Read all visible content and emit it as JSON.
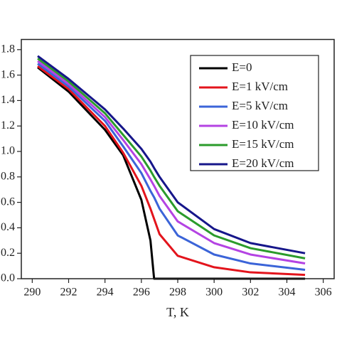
{
  "chart_data": {
    "type": "line",
    "x_label": "T, K",
    "x": [
      290.3,
      292,
      294,
      295,
      296,
      296.5,
      296.7,
      297,
      298,
      300,
      302,
      305
    ],
    "series": [
      {
        "name": "E=0",
        "color": "#000000",
        "values": [
          1.66,
          1.47,
          1.17,
          0.97,
          0.62,
          0.3,
          0,
          0,
          0,
          0,
          0,
          0
        ]
      },
      {
        "name": "E=1 kV/cm",
        "color": "#e3141c",
        "values": [
          1.67,
          1.49,
          1.2,
          0.99,
          0.73,
          0.55,
          0.47,
          0.35,
          0.18,
          0.09,
          0.05,
          0.03
        ]
      },
      {
        "name": "E=5 kV/cm",
        "color": "#3b64d8",
        "values": [
          1.69,
          1.51,
          1.24,
          1.04,
          0.83,
          0.69,
          0.64,
          0.55,
          0.34,
          0.19,
          0.12,
          0.07
        ]
      },
      {
        "name": "E=10 kV/cm",
        "color": "#b443e3",
        "values": [
          1.71,
          1.53,
          1.27,
          1.09,
          0.9,
          0.78,
          0.73,
          0.65,
          0.45,
          0.28,
          0.19,
          0.12
        ]
      },
      {
        "name": "E=15 kV/cm",
        "color": "#2b9b2b",
        "values": [
          1.73,
          1.55,
          1.3,
          1.13,
          0.96,
          0.85,
          0.8,
          0.73,
          0.53,
          0.34,
          0.24,
          0.16
        ]
      },
      {
        "name": "E=20 kV/cm",
        "color": "#16168a",
        "values": [
          1.75,
          1.57,
          1.33,
          1.18,
          1.02,
          0.92,
          0.87,
          0.8,
          0.6,
          0.39,
          0.28,
          0.2
        ]
      }
    ],
    "xlim": [
      289.4,
      306.6
    ],
    "xticks": [
      290,
      292,
      294,
      296,
      298,
      300,
      302,
      304,
      306
    ],
    "ylim": [
      0,
      1.88
    ],
    "yticks": [
      {
        "value": 0,
        "label": "0.0"
      },
      0.2,
      0.4,
      0.6,
      0.8,
      {
        "value": 1,
        "label": "1.0"
      },
      1.2,
      1.4,
      1.6,
      1.8
    ],
    "legend": "upper right"
  }
}
